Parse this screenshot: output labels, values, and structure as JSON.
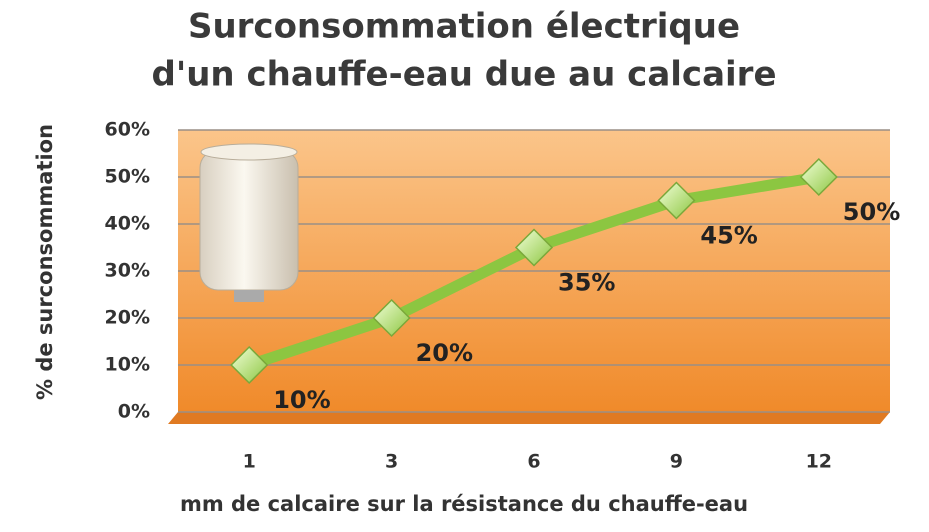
{
  "chart_data": {
    "type": "line",
    "title": "Surconsommation électrique",
    "subtitle": "d'un chauffe-eau due au calcaire",
    "x_label": "mm de calcaire sur la résistance du chauffe-eau",
    "y_label": "% de surconsommation",
    "categories": [
      "1",
      "3",
      "6",
      "9",
      "12"
    ],
    "values": [
      10,
      20,
      35,
      45,
      50
    ],
    "value_labels": [
      "10%",
      "20%",
      "35%",
      "45%",
      "50%"
    ],
    "color": "#8cc641",
    "ylim": [
      0,
      60
    ],
    "yticks": [
      {
        "value": 0,
        "label": "0%"
      },
      {
        "value": 10,
        "label": "10%"
      },
      {
        "value": 20,
        "label": "20%"
      },
      {
        "value": 30,
        "label": "30%"
      },
      {
        "value": 40,
        "label": "40%"
      },
      {
        "value": 50,
        "label": "50%"
      },
      {
        "value": 60,
        "label": "60%"
      }
    ],
    "grid": true
  }
}
